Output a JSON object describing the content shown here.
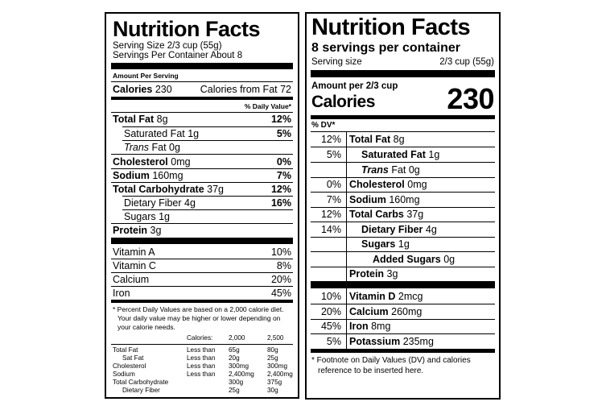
{
  "old_label": {
    "title": "Nutrition Facts",
    "serving_size": "Serving Size 2/3 cup (55g)",
    "servings_per_container": "Servings Per Container About 8",
    "amount_per_serving": "Amount Per Serving",
    "calories_label": "Calories",
    "calories_value": "230",
    "calories_from_fat": "Calories from Fat 72",
    "daily_value_header": "% Daily Value*",
    "nutrients": [
      {
        "name": "Total Fat",
        "amount": "8g",
        "dv": "12%"
      },
      {
        "name": "Saturated Fat",
        "amount": "1g",
        "dv": "5%"
      },
      {
        "name": "Trans",
        "name_suffix": "Fat 0g",
        "dv": ""
      },
      {
        "name": "Cholesterol",
        "amount": "0mg",
        "dv": "0%"
      },
      {
        "name": "Sodium",
        "amount": "160mg",
        "dv": "7%"
      },
      {
        "name": "Total Carbohydrate",
        "amount": "37g",
        "dv": "12%"
      },
      {
        "name": "Dietary Fiber",
        "amount": "4g",
        "dv": "16%"
      },
      {
        "name": "Sugars",
        "amount": "1g",
        "dv": ""
      },
      {
        "name": "Protein",
        "amount": "3g",
        "dv": ""
      }
    ],
    "vitamins": [
      {
        "name": "Vitamin A",
        "dv": "10%"
      },
      {
        "name": "Vitamin C",
        "dv": "8%"
      },
      {
        "name": "Calcium",
        "dv": "20%"
      },
      {
        "name": "Iron",
        "dv": "45%"
      }
    ],
    "footnote": [
      "* Percent Daily Values are based on a 2,000 calorie diet.",
      "Your daily value may be higher or lower depending on",
      "your calorie needs."
    ],
    "table_header": [
      "Calories:",
      "2,000",
      "2,500"
    ],
    "table_rows": [
      [
        "Total Fat",
        "Less than",
        "65g",
        "80g"
      ],
      [
        "Sat Fat",
        "Less than",
        "20g",
        "25g"
      ],
      [
        "Cholesterol",
        "Less than",
        "300mg",
        "300mg"
      ],
      [
        "Sodium",
        "Less than",
        "2,400mg",
        "2,400mg"
      ],
      [
        "Total Carbohydrate",
        "",
        "300g",
        "375g"
      ],
      [
        "Dietary Fiber",
        "",
        "25g",
        "30g"
      ]
    ]
  },
  "new_label": {
    "title": "Nutrition Facts",
    "servings": "8 servings per container",
    "serving_size_label": "Serving size",
    "serving_size_value": "2/3 cup (55g)",
    "amount_per": "Amount per 2/3 cup",
    "calories_label": "Calories",
    "calories_value": "230",
    "dv_header": "% DV*",
    "nutrients": [
      {
        "dv": "12%",
        "name": "Total Fat",
        "amount": "8g"
      },
      {
        "dv": "5%",
        "name": "Saturated Fat",
        "amount": "1g"
      },
      {
        "dv": "",
        "name": "Trans",
        "amount": "Fat 0g"
      },
      {
        "dv": "0%",
        "name": "Cholesterol",
        "amount": "0mg"
      },
      {
        "dv": "7%",
        "name": "Sodium",
        "amount": "160mg"
      },
      {
        "dv": "12%",
        "name": "Total Carbs",
        "amount": "37g"
      },
      {
        "dv": "14%",
        "name": "Dietary Fiber",
        "amount": "4g"
      },
      {
        "dv": "",
        "name": "Sugars",
        "amount": "1g"
      },
      {
        "dv": "",
        "name": "Added Sugars",
        "amount": "0g"
      },
      {
        "dv": "",
        "name": "Protein",
        "amount": "3g"
      }
    ],
    "vitamins": [
      {
        "dv": "10%",
        "name": "Vitamin D",
        "amount": "2mcg"
      },
      {
        "dv": "20%",
        "name": "Calcium",
        "amount": "260mg"
      },
      {
        "dv": "45%",
        "name": "Iron",
        "amount": "8mg"
      },
      {
        "dv": "5%",
        "name": "Potassium",
        "amount": "235mg"
      }
    ],
    "footnote": [
      "* Footnote on Daily Values (DV) and calories",
      "reference to be inserted here."
    ]
  }
}
